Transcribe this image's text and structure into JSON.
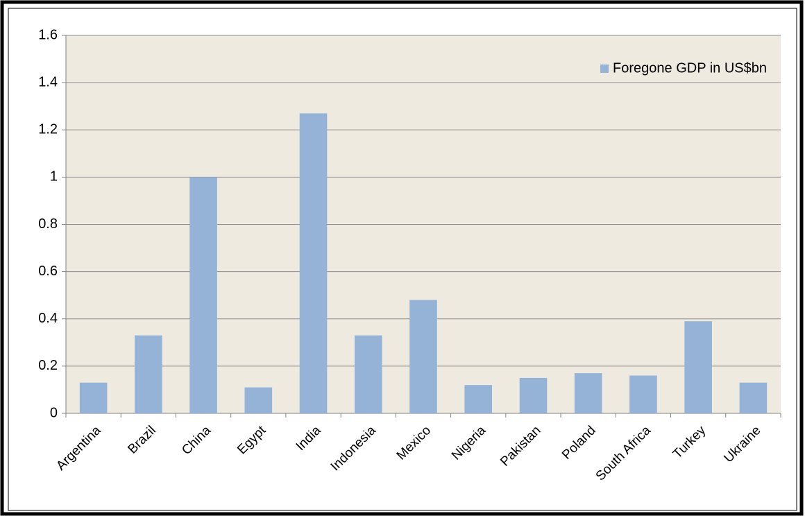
{
  "chart_data": {
    "type": "bar",
    "categories": [
      "Argentina",
      "Brazil",
      "China",
      "Egypt",
      "India",
      "Indonesia",
      "Mexico",
      "Nigeria",
      "Pakistan",
      "Poland",
      "South Africa",
      "Turkey",
      "Ukraine"
    ],
    "series": [
      {
        "name": "Foregone GDP in US$bn",
        "color": "#95b3d7",
        "values": [
          0.13,
          0.33,
          1.0,
          0.11,
          1.27,
          0.33,
          0.48,
          0.12,
          0.15,
          0.17,
          0.16,
          0.39,
          0.13
        ]
      }
    ],
    "ylim": [
      0,
      1.6
    ],
    "yticks": [
      0,
      0.2,
      0.4,
      0.6,
      0.8,
      1,
      1.2,
      1.4,
      1.6
    ],
    "grid": true,
    "legend": "top-right"
  }
}
